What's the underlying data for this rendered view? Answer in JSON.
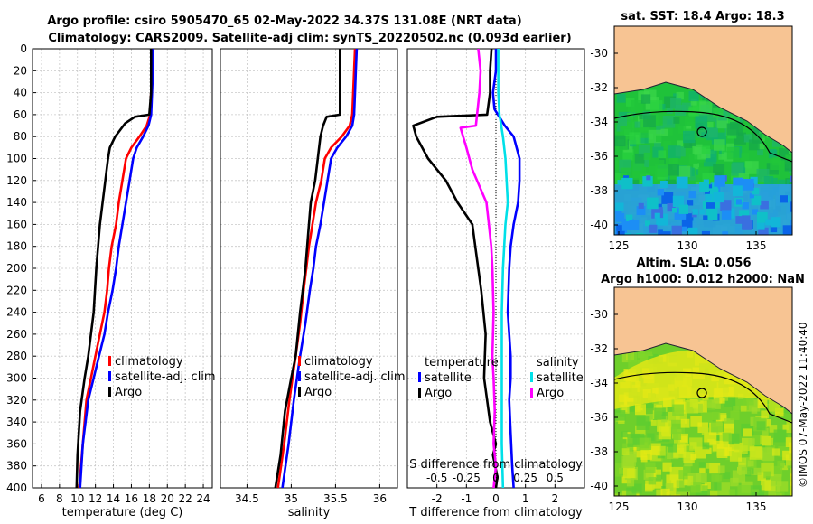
{
  "header": {
    "line1": "Argo profile: csiro 5905470_65 02-May-2022 34.37S 131.08E (NRT data)",
    "line2": "Climatology: CARS2009. Satellite-adj clim: synTS_20220502.nc (0.093d earlier)"
  },
  "side_stamp": "©IMOS 07-May-2022 11:40:40",
  "colors": {
    "climatology": "#ff0000",
    "satellite": "#0000ff",
    "argo": "#000000",
    "sal_sat": "#00e0e8",
    "sal_argo": "#ff00ff",
    "land": "#f7c493"
  },
  "depth_axis": {
    "ticks": [
      0,
      20,
      40,
      60,
      80,
      100,
      120,
      140,
      160,
      180,
      200,
      220,
      240,
      260,
      280,
      300,
      320,
      340,
      360,
      380,
      400
    ],
    "ylim": [
      0,
      400
    ]
  },
  "chart_data": [
    {
      "type": "line",
      "name": "temperature",
      "xlabel": "temperature (deg C)",
      "xlim": [
        5,
        25
      ],
      "xticks": [
        6,
        8,
        10,
        12,
        14,
        16,
        18,
        20,
        22,
        24
      ],
      "legend": [
        "climatology",
        "satellite-adj. clim",
        "Argo"
      ],
      "series": [
        {
          "name": "climatology",
          "color": "#ff0000",
          "x": [
            18.3,
            18.3,
            18.2,
            18.1,
            17.7,
            16.9,
            16.0,
            15.4,
            15.0,
            14.6,
            14.3,
            13.8,
            13.5,
            13.3,
            13.0,
            12.5,
            12.0,
            11.5,
            11.0,
            10.7,
            10.2
          ],
          "depth": [
            0,
            20,
            40,
            60,
            70,
            80,
            90,
            100,
            120,
            140,
            160,
            180,
            200,
            220,
            240,
            260,
            280,
            300,
            320,
            350,
            400
          ]
        },
        {
          "name": "satellite-adj. clim",
          "color": "#0000ff",
          "x": [
            18.4,
            18.4,
            18.3,
            18.2,
            17.9,
            17.3,
            16.6,
            16.2,
            15.8,
            15.4,
            15.0,
            14.6,
            14.3,
            13.9,
            13.4,
            13.0,
            12.4,
            11.8,
            11.2,
            10.6,
            10.3
          ],
          "depth": [
            0,
            20,
            40,
            60,
            70,
            80,
            90,
            100,
            120,
            140,
            160,
            180,
            200,
            220,
            240,
            260,
            280,
            300,
            320,
            360,
            400
          ]
        },
        {
          "name": "Argo",
          "color": "#000000",
          "x": [
            18.2,
            18.2,
            18.2,
            18.0,
            16.4,
            15.3,
            14.2,
            13.6,
            13.4,
            13.1,
            12.8,
            12.5,
            12.1,
            11.8,
            11.2,
            10.8,
            10.3,
            10.0,
            9.9
          ],
          "depth": [
            0,
            20,
            40,
            60,
            62,
            68,
            80,
            90,
            100,
            120,
            140,
            160,
            200,
            240,
            280,
            300,
            330,
            370,
            400
          ]
        }
      ]
    },
    {
      "type": "line",
      "name": "salinity",
      "xlabel": "salinity",
      "xlim": [
        34.2,
        36.2
      ],
      "xticks": [
        34.5,
        35,
        35.5,
        36
      ],
      "legend": [
        "climatology",
        "satellite-adj. clim",
        "Argo"
      ],
      "series": [
        {
          "name": "climatology",
          "color": "#ff0000",
          "x": [
            35.72,
            35.71,
            35.7,
            35.69,
            35.66,
            35.57,
            35.45,
            35.38,
            35.34,
            35.28,
            35.24,
            35.2,
            35.17,
            35.14,
            35.1,
            35.05,
            34.98,
            34.92,
            34.85
          ],
          "depth": [
            0,
            20,
            40,
            60,
            70,
            80,
            90,
            100,
            120,
            140,
            160,
            180,
            200,
            220,
            250,
            280,
            320,
            360,
            400
          ]
        },
        {
          "name": "satellite-adj. clim",
          "color": "#0000ff",
          "x": [
            35.74,
            35.73,
            35.72,
            35.71,
            35.69,
            35.62,
            35.52,
            35.45,
            35.41,
            35.37,
            35.33,
            35.28,
            35.25,
            35.21,
            35.16,
            35.1,
            35.03,
            34.97,
            34.9
          ],
          "depth": [
            0,
            20,
            40,
            60,
            70,
            80,
            90,
            100,
            120,
            140,
            160,
            180,
            200,
            220,
            250,
            280,
            320,
            360,
            400
          ]
        },
        {
          "name": "Argo",
          "color": "#000000",
          "x": [
            35.55,
            35.55,
            35.55,
            35.55,
            35.4,
            35.36,
            35.33,
            35.3,
            35.27,
            35.22,
            35.2,
            35.16,
            35.1,
            35.05,
            35.0,
            34.93,
            34.88,
            34.82
          ],
          "depth": [
            0,
            20,
            40,
            60,
            62,
            70,
            80,
            100,
            120,
            140,
            160,
            200,
            240,
            280,
            300,
            330,
            370,
            400
          ]
        }
      ]
    },
    {
      "type": "line",
      "name": "difference",
      "xlabel": "T difference from climatology",
      "xlabel_top": "S difference from climatology",
      "xlim": [
        -3,
        3
      ],
      "xticks": [
        -2,
        -1,
        0,
        1,
        2
      ],
      "top_xlim": [
        -0.75,
        0.75
      ],
      "top_xticks": [
        -0.5,
        -0.25,
        0,
        0.25,
        0.5
      ],
      "top_tick_labels": [
        "-0.5",
        "-0.25",
        "0",
        "0.25",
        "0.5"
      ],
      "legend_left_title": "temperature",
      "legend_right_title": "salinity",
      "legend_left": [
        "satellite",
        "Argo"
      ],
      "legend_right": [
        "satellite",
        "Argo"
      ],
      "series": [
        {
          "name": "T satellite",
          "color": "#0000ff",
          "scale": "T",
          "x": [
            0.0,
            0.0,
            -0.1,
            -0.05,
            0.3,
            0.6,
            0.8,
            0.8,
            0.75,
            0.6,
            0.5,
            0.45,
            0.4,
            0.5,
            0.5,
            0.45,
            0.5,
            0.55,
            0.6
          ],
          "depth": [
            0,
            20,
            40,
            55,
            70,
            80,
            100,
            120,
            140,
            160,
            180,
            200,
            240,
            280,
            300,
            320,
            350,
            380,
            400
          ]
        },
        {
          "name": "T Argo",
          "color": "#000000",
          "scale": "T",
          "x": [
            -0.15,
            -0.2,
            -0.2,
            -0.3,
            -2.0,
            -2.8,
            -2.7,
            -2.3,
            -1.7,
            -1.3,
            -0.8,
            -0.7,
            -0.5,
            -0.35,
            -0.4,
            -0.3,
            -0.2,
            0.0,
            -0.1,
            0.05,
            0.0
          ],
          "depth": [
            0,
            20,
            40,
            60,
            62,
            70,
            80,
            100,
            120,
            140,
            160,
            180,
            220,
            260,
            300,
            320,
            340,
            360,
            370,
            390,
            400
          ]
        },
        {
          "name": "S satellite",
          "color": "#00e0e8",
          "scale": "S",
          "x": [
            0.02,
            0.02,
            0.02,
            0.03,
            0.06,
            0.08,
            0.09,
            0.1,
            0.08,
            0.06,
            0.05,
            0.05,
            0.05,
            0.05,
            0.06
          ],
          "depth": [
            0,
            20,
            40,
            60,
            80,
            100,
            120,
            140,
            160,
            200,
            240,
            280,
            320,
            360,
            400
          ]
        },
        {
          "name": "S Argo",
          "color": "#ff00ff",
          "scale": "S",
          "x": [
            -0.15,
            -0.13,
            -0.14,
            -0.16,
            -0.17,
            -0.3,
            -0.25,
            -0.2,
            -0.08,
            -0.06,
            -0.04,
            -0.03,
            -0.02,
            -0.03,
            -0.02,
            -0.01,
            -0.02,
            0.0,
            -0.02
          ],
          "depth": [
            0,
            20,
            40,
            60,
            70,
            72,
            90,
            110,
            140,
            160,
            180,
            200,
            240,
            280,
            300,
            330,
            360,
            380,
            400
          ]
        }
      ]
    }
  ],
  "maps": [
    {
      "title": "sat. SST: 18.4 Argo: 18.3",
      "yticks": [
        "-30",
        "-32",
        "-34",
        "-36",
        "-38",
        "-40"
      ],
      "xticks": [
        "125",
        "130",
        "135"
      ]
    },
    {
      "title1": "Altim. SLA: 0.056",
      "title2": "Argo h1000: 0.012 h2000: NaN",
      "yticks": [
        "-30",
        "-32",
        "-34",
        "-36",
        "-38",
        "-40"
      ],
      "xticks": [
        "125",
        "130",
        "135"
      ]
    }
  ]
}
